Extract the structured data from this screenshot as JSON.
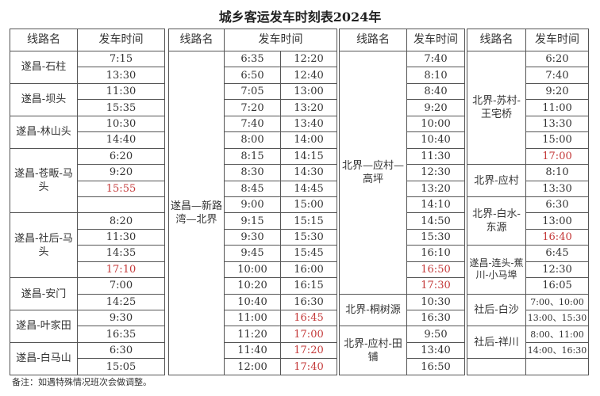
{
  "title": "城乡客运发车时刻表2024年",
  "headers": {
    "route": "线路名",
    "time": "发车时间"
  },
  "colors": {
    "highlight": "#c43a3a",
    "border": "#555555"
  },
  "table1": [
    {
      "route": "遂昌-石柱",
      "times": [
        "7:15",
        "13:30"
      ],
      "red": []
    },
    {
      "route": "遂昌-坝头",
      "times": [
        "11:30",
        "15:35"
      ],
      "red": []
    },
    {
      "route": "遂昌-林山头",
      "times": [
        "10:30",
        "14:40"
      ],
      "red": []
    },
    {
      "route": "遂昌-苍畈-马头",
      "times": [
        "6:20",
        "9:20",
        "15:55",
        ""
      ],
      "red": [
        "15:55"
      ]
    },
    {
      "route": "遂昌-社后-马头",
      "times": [
        "8:20",
        "11:30",
        "14:35",
        "17:10"
      ],
      "red": [
        "17:10"
      ]
    },
    {
      "route": "遂昌-安门",
      "times": [
        "7:00",
        "14:25"
      ],
      "red": []
    },
    {
      "route": "遂昌-叶家田",
      "times": [
        "9:30",
        "16:35"
      ],
      "red": []
    },
    {
      "route": "遂昌-白马山",
      "times": [
        "6:30",
        "15:05"
      ],
      "red": []
    }
  ],
  "table2": {
    "route": "遂昌—新路湾—北界",
    "times_a": [
      "6:35",
      "6:50",
      "7:05",
      "7:20",
      "7:40",
      "8:00",
      "8:15",
      "8:30",
      "8:45",
      "9:00",
      "9:15",
      "9:30",
      "9:45",
      "10:00",
      "10:20",
      "10:40",
      "11:00",
      "11:20",
      "11:40",
      "12:00"
    ],
    "times_b": [
      "12:20",
      "12:40",
      "13:00",
      "13:20",
      "13:40",
      "14:00",
      "14:15",
      "14:30",
      "14:45",
      "15:00",
      "15:15",
      "15:30",
      "15:45",
      "16:00",
      "16:15",
      "16:30",
      "16:45",
      "17:00",
      "17:20",
      "17:40"
    ],
    "red": [
      "16:45",
      "17:00",
      "17:20",
      "17:40"
    ]
  },
  "table3": [
    {
      "route": "北界—应村—高坪",
      "times": [
        "7:40",
        "8:10",
        "8:40",
        "9:20",
        "10:00",
        "10:40",
        "11:30",
        "12:30",
        "13:20",
        "14:10",
        "14:50",
        "15:30",
        "16:10",
        "16:50",
        "17:30"
      ],
      "red": [
        "16:50",
        "17:30"
      ]
    },
    {
      "route": "北界-桐树源",
      "times": [
        "10:30",
        "16:30"
      ],
      "red": []
    },
    {
      "route": "北界-应村-田铺",
      "times": [
        "9:50",
        "13:40",
        "16:50"
      ],
      "red": []
    }
  ],
  "table4": [
    {
      "route": "北界-苏村-王宅桥",
      "times": [
        "6:20",
        "7:40",
        "9:20",
        "11:00",
        "13:30",
        "15:00",
        "17:00"
      ],
      "red": [
        "17:00"
      ]
    },
    {
      "route": "北界-应村",
      "times": [
        "8:10",
        "13:30"
      ],
      "red": []
    },
    {
      "route": "北界-白水-东源",
      "times": [
        "6:30",
        "13:00",
        "16:40"
      ],
      "red": [
        "16:40"
      ]
    },
    {
      "route": "遂昌-连头-蕉川-小马埠",
      "times": [
        "6:45",
        "12:30",
        "16:05"
      ],
      "red": [],
      "small": true
    },
    {
      "route": "社后-白沙",
      "times": [
        "7:00、10:00",
        "13:00、15:30"
      ],
      "red": [],
      "small_times": true
    },
    {
      "route": "社后-祥川",
      "times": [
        "8:00、11:00",
        "14:00、16:30"
      ],
      "red": [],
      "small_times": true
    },
    {
      "route": "",
      "times": [
        ""
      ],
      "red": []
    }
  ],
  "note": "备注：如遇特殊情况班次会做调整。"
}
